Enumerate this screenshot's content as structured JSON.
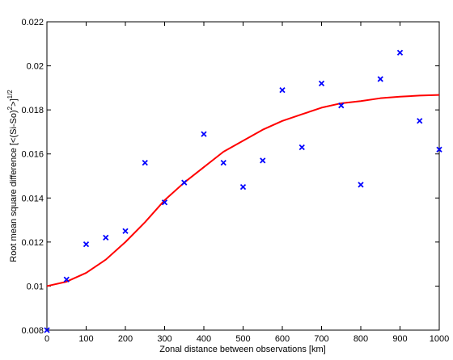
{
  "chart_data": {
    "type": "scatter",
    "title": "",
    "xlabel": "Zonal distance between observations [km]",
    "ylabel_parts": {
      "prefix": "Root mean square difference [<(Si-So)",
      "sup1": "2",
      "mid": ">]",
      "sup2": "1/2"
    },
    "xlim": [
      0,
      1000
    ],
    "ylim": [
      0.008,
      0.022
    ],
    "xticks": [
      0,
      100,
      200,
      300,
      400,
      500,
      600,
      700,
      800,
      900,
      1000
    ],
    "yticks": [
      0.008,
      0.01,
      0.012,
      0.014,
      0.016,
      0.018,
      0.02,
      0.022
    ],
    "ytick_labels": [
      "0.008",
      "0.01",
      "0.012",
      "0.014",
      "0.016",
      "0.018",
      "0.02",
      "0.022"
    ],
    "grid": false,
    "series": [
      {
        "kind": "scatter",
        "marker": "x",
        "color": "#0000ff",
        "x": [
          0,
          50,
          100,
          150,
          200,
          250,
          300,
          350,
          400,
          450,
          500,
          550,
          600,
          650,
          700,
          750,
          800,
          850,
          900,
          950,
          1000
        ],
        "y": [
          0.008,
          0.0103,
          0.0119,
          0.0122,
          0.0125,
          0.0156,
          0.0138,
          0.0147,
          0.0169,
          0.0156,
          0.0145,
          0.0157,
          0.0189,
          0.0163,
          0.0192,
          0.0182,
          0.0146,
          0.0194,
          0.0206,
          0.0175,
          0.0162
        ]
      },
      {
        "kind": "line",
        "color": "#ff0000",
        "x": [
          0,
          50,
          100,
          150,
          200,
          250,
          300,
          350,
          400,
          450,
          500,
          550,
          600,
          650,
          700,
          750,
          800,
          850,
          900,
          950,
          1000
        ],
        "y": [
          0.01,
          0.0102,
          0.0106,
          0.0112,
          0.012,
          0.0129,
          0.0139,
          0.0147,
          0.0154,
          0.0161,
          0.0166,
          0.0171,
          0.0175,
          0.0178,
          0.0181,
          0.0183,
          0.0184,
          0.01853,
          0.0186,
          0.01865,
          0.01868
        ]
      }
    ]
  }
}
